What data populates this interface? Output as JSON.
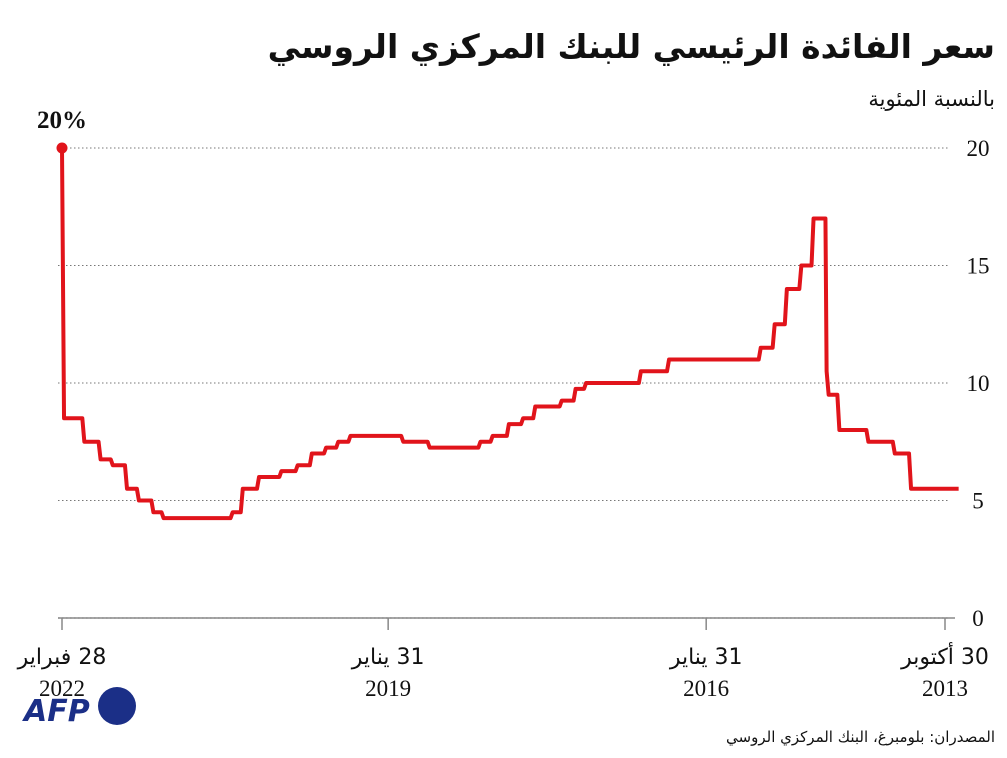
{
  "chart_data": {
    "type": "line",
    "title": "سعر الفائدة الرئيسي للبنك المركزي الروسي",
    "subtitle": "بالنسبة المئوية",
    "source": "المصدران: بلومبرغ، البنك المركزي الروسي",
    "logo": "AFP",
    "color": "#e1141b",
    "grid": true,
    "x": [
      "2013-09-13",
      "2014-02-24",
      "2014-03-03",
      "2014-04-21",
      "2014-04-28",
      "2014-07-21",
      "2014-07-28",
      "2014-10-29",
      "2014-11-05",
      "2014-12-05",
      "2014-12-12",
      "2014-12-16",
      "2015-01-26",
      "2015-02-02",
      "2015-03-09",
      "2015-03-16",
      "2015-04-28",
      "2015-05-05",
      "2015-06-09",
      "2015-06-16",
      "2015-07-27",
      "2015-08-03",
      "2016-06-07",
      "2016-06-14",
      "2016-09-12",
      "2016-09-19",
      "2017-03-20",
      "2017-03-27",
      "2017-04-25",
      "2017-05-02",
      "2017-06-12",
      "2017-06-19",
      "2017-09-11",
      "2017-09-18",
      "2017-10-23",
      "2017-10-30",
      "2017-12-11",
      "2017-12-18",
      "2018-02-05",
      "2018-02-12",
      "2018-03-19",
      "2018-03-26",
      "2018-09-10",
      "2018-09-17",
      "2018-12-10",
      "2018-12-17",
      "2019-06-10",
      "2019-06-17",
      "2019-07-22",
      "2019-07-29",
      "2019-09-02",
      "2019-09-09",
      "2019-10-21",
      "2019-10-28",
      "2019-12-09",
      "2019-12-16",
      "2020-02-03",
      "2020-02-10",
      "2020-04-20",
      "2020-04-27",
      "2020-06-15",
      "2020-06-22",
      "2020-07-20",
      "2020-07-27",
      "2021-03-15",
      "2021-03-22",
      "2021-04-19",
      "2021-04-26",
      "2021-06-08",
      "2021-06-15",
      "2021-07-19",
      "2021-07-26",
      "2021-09-06",
      "2021-09-13",
      "2021-10-18",
      "2021-10-25",
      "2021-12-13",
      "2021-12-20",
      "2022-02-21",
      "2022-02-28"
    ],
    "values": [
      5.5,
      5.5,
      7.0,
      7.0,
      7.5,
      7.5,
      8.0,
      8.0,
      9.5,
      9.5,
      10.5,
      17.0,
      17.0,
      15.0,
      15.0,
      14.0,
      14.0,
      12.5,
      12.5,
      11.5,
      11.5,
      11.0,
      11.0,
      10.5,
      10.5,
      10.0,
      10.0,
      9.75,
      9.75,
      9.25,
      9.25,
      9.0,
      9.0,
      8.5,
      8.5,
      8.25,
      8.25,
      7.75,
      7.75,
      7.5,
      7.5,
      7.25,
      7.25,
      7.5,
      7.5,
      7.75,
      7.75,
      7.5,
      7.5,
      7.25,
      7.25,
      7.0,
      7.0,
      6.5,
      6.5,
      6.25,
      6.25,
      6.0,
      6.0,
      5.5,
      5.5,
      4.5,
      4.5,
      4.25,
      4.25,
      4.5,
      4.5,
      5.0,
      5.0,
      5.5,
      5.5,
      6.5,
      6.5,
      6.75,
      6.75,
      7.5,
      7.5,
      8.5,
      8.5,
      20
    ],
    "value_labels": [
      null,
      null,
      null,
      null,
      null,
      null,
      null,
      null,
      null,
      null,
      null,
      null,
      null,
      null,
      null,
      null,
      null,
      null,
      null,
      null,
      null,
      null,
      null,
      null,
      null,
      null,
      null,
      null,
      null,
      null,
      null,
      null,
      null,
      null,
      null,
      null,
      null,
      null,
      null,
      null,
      null,
      null,
      null,
      null,
      null,
      null,
      null,
      null,
      null,
      null,
      null,
      null,
      null,
      null,
      null,
      null,
      null,
      null,
      null,
      null,
      null,
      null,
      null,
      null,
      null,
      null,
      null,
      null,
      null,
      null,
      null,
      null,
      null,
      null,
      null,
      null,
      null,
      null,
      null,
      "20%"
    ],
    "xlim": [
      "2022-02-28",
      "2013-10-30"
    ],
    "xticks": [
      {
        "value": "2022-02-28",
        "label": [
          "28 فبراير",
          "2022"
        ]
      },
      {
        "value": "2019-01-31",
        "label": [
          "31 يناير",
          "2019"
        ]
      },
      {
        "value": "2016-01-31",
        "label": [
          "31 يناير",
          "2016"
        ]
      },
      {
        "value": "2013-10-30",
        "label": [
          "30 أكتوبر",
          "2013"
        ]
      }
    ],
    "ylim": [
      0,
      20
    ],
    "yticks": [
      0,
      5,
      10,
      15,
      20
    ]
  }
}
